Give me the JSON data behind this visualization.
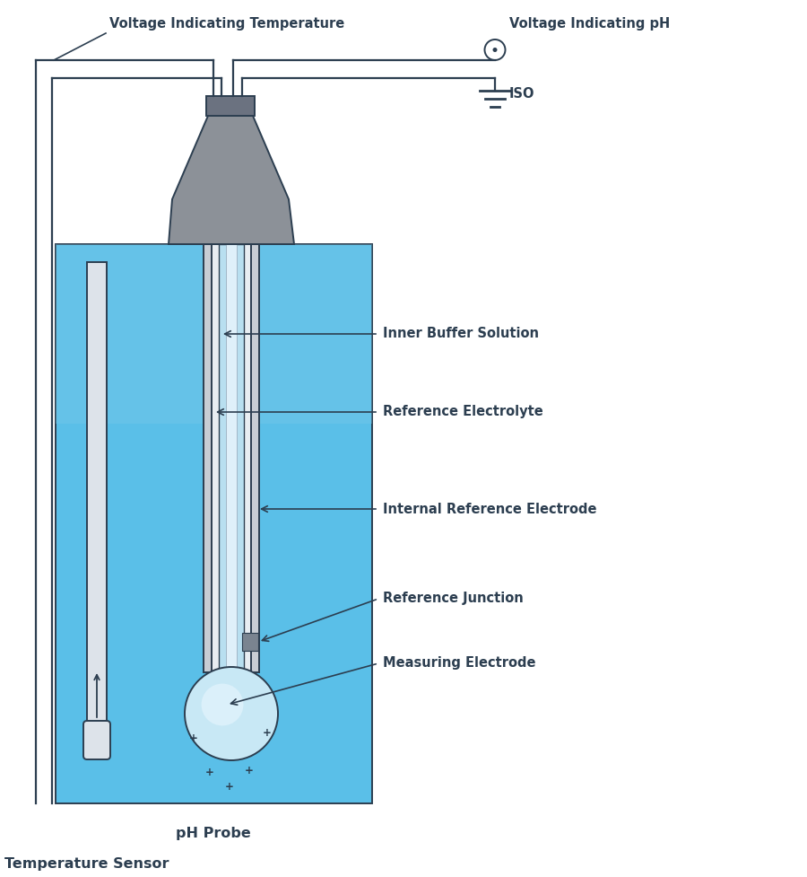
{
  "bg_color": "#ffffff",
  "container_color": "#5abfe8",
  "container_border": "#2c3e50",
  "dark_text": "#2c3e50",
  "inner_buffer_color": "#b8dff0",
  "gray_head": "#8c9198",
  "gray_connector": "#6b7280",
  "gray_tube_outer": "#c8cdd4",
  "gray_tube_inner": "#dde3ea",
  "bulb_color": "#c8e8f5",
  "ref_junction_color": "#7a8490",
  "labels": {
    "voltage_temp": "Voltage Indicating Temperature",
    "voltage_ph": "Voltage Indicating pH",
    "iso": "ISO",
    "inner_buffer": "Inner Buffer Solution",
    "ref_electrolyte": "Reference Electrolyte",
    "internal_ref": "Internal Reference Electrode",
    "ref_junction": "Reference Junction",
    "measuring": "Measuring Electrode",
    "ph_probe": "pH Probe",
    "temp_sensor": "Temperature Sensor"
  }
}
